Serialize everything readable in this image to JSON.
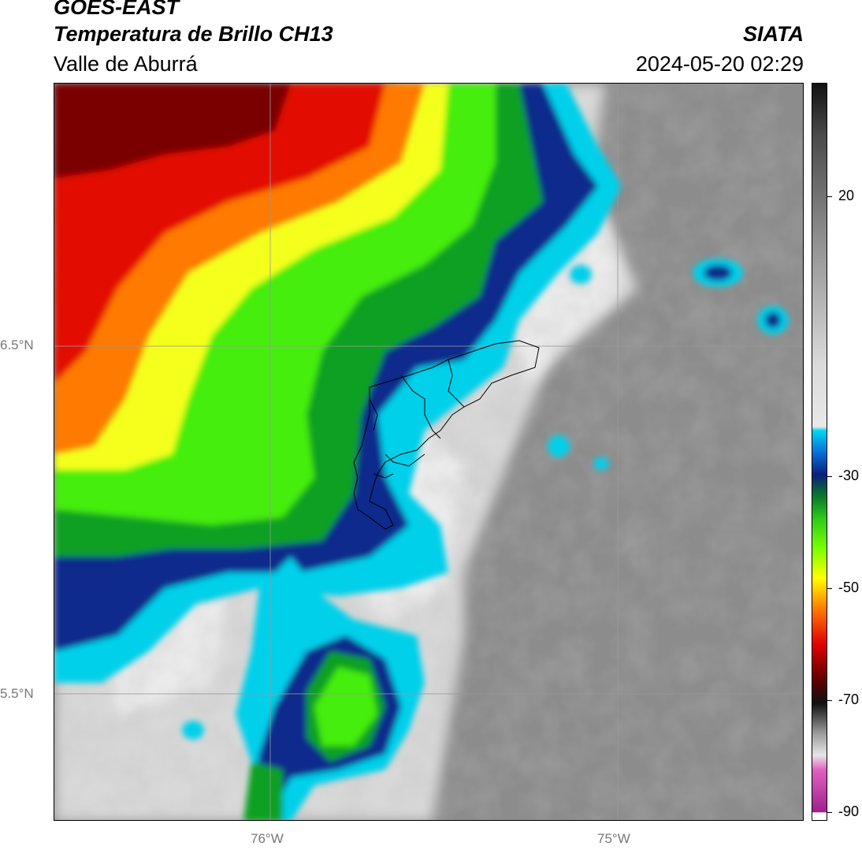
{
  "header": {
    "satellite": "GOES-EAST",
    "product": "Temperatura de Brillo CH13",
    "region": "Valle de Aburrá",
    "agency": "SIATA",
    "datetime": "2024-05-20 02:29"
  },
  "axes": {
    "lat_labels": [
      "6.5°N",
      "5.5°N"
    ],
    "lon_labels": [
      "76°W",
      "75°W"
    ]
  },
  "colorbar": {
    "ticks": [
      "20",
      "-30",
      "-50",
      "-70",
      "-90"
    ],
    "colors": {
      "magenta": "#a0208c",
      "gray_light": "#e6e6e6",
      "gray_dark": "#4a4a4a",
      "black": "#111111",
      "red": "#e00000",
      "orange": "#ff8000",
      "yellow": "#ffff00",
      "green": "#2ecc1a",
      "dark_green": "#0a7a2a",
      "navy": "#0a1f7a",
      "blue": "#0a6ed8",
      "cyan": "#00d8f0"
    }
  },
  "map": {
    "colors": {
      "warm_gray": "#8c8c8c",
      "light_gray": "#dcdcdc",
      "cyan": "#00d0ea",
      "navy": "#0b2a8c",
      "green": "#10a020",
      "lime": "#44ee10",
      "yellow": "#f4ff1a",
      "orange": "#ff7a00",
      "red": "#e21000",
      "dark_red": "#7a0000",
      "grid": "#999999",
      "border": "#000000"
    }
  }
}
